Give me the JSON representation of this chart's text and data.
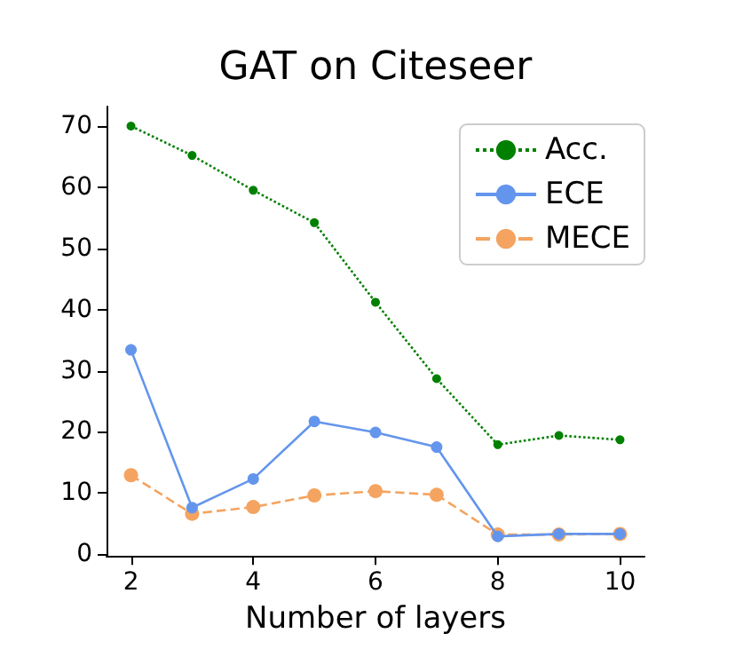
{
  "chart_data": {
    "type": "line",
    "title": "GAT on Citeseer",
    "xlabel": "Number of layers",
    "x": [
      2,
      3,
      4,
      5,
      6,
      7,
      8,
      9,
      10
    ],
    "series": [
      {
        "name": "Acc.",
        "color": "#008000",
        "line_style": "dotted",
        "values": [
          70.0,
          65.2,
          59.5,
          54.2,
          41.2,
          28.7,
          17.9,
          19.4,
          18.7
        ]
      },
      {
        "name": "ECE",
        "color": "#6495ed",
        "line_style": "solid",
        "values": [
          33.4,
          7.6,
          12.3,
          21.7,
          19.9,
          17.5,
          2.9,
          3.3,
          3.3
        ]
      },
      {
        "name": "MECE",
        "color": "#f4a460",
        "line_style": "dashed",
        "values": [
          12.9,
          6.6,
          7.7,
          9.6,
          10.3,
          9.7,
          3.2,
          3.2,
          3.3
        ]
      }
    ],
    "xlim": [
      1.6,
      10.4
    ],
    "xticks": [
      2,
      4,
      6,
      8,
      10
    ],
    "ylim": [
      -0.3,
      73.2
    ],
    "yticks": [
      0,
      10,
      20,
      30,
      40,
      50,
      60,
      70
    ],
    "marker": "circle",
    "legend": "top right",
    "grid": false
  }
}
